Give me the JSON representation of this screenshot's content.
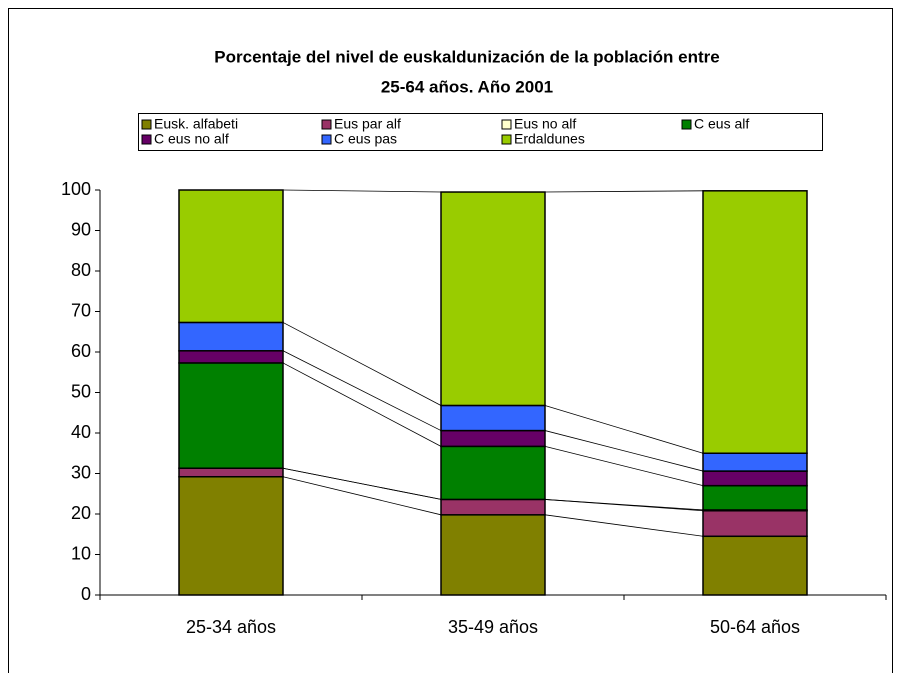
{
  "chart_data": {
    "type": "stacked_bar",
    "title_lines": [
      "Porcentaje del nivel de euskaldunización de la población entre",
      "25-64 años. Año 2001"
    ],
    "categories": [
      "25-34 años",
      "35-49 años",
      "50-64 años"
    ],
    "series": [
      {
        "name": "Eusk. alfabeti",
        "color": "#808000",
        "values": [
          29.2,
          19.8,
          14.5
        ]
      },
      {
        "name": "Eus par alf",
        "color": "#993366",
        "values": [
          2.1,
          3.8,
          6.3
        ]
      },
      {
        "name": "Eus no alf",
        "color": "#ffffcc",
        "values": [
          0,
          0,
          0.2
        ]
      },
      {
        "name": "C eus alf",
        "color": "#008000",
        "values": [
          26,
          13.1,
          6
        ]
      },
      {
        "name": "C eus no alf",
        "color": "#660066",
        "values": [
          3,
          3.9,
          3.6
        ]
      },
      {
        "name": "C eus pas",
        "color": "#3366ff",
        "values": [
          7,
          6.2,
          4.4
        ]
      },
      {
        "name": "Erdaldunes",
        "color": "#99cc00",
        "values": [
          32.7,
          52.7,
          64.8
        ]
      }
    ],
    "ylim": [
      0,
      100
    ],
    "yticks": [
      0,
      10,
      20,
      30,
      40,
      50,
      60,
      70,
      80,
      90,
      100
    ],
    "series_lines": true
  }
}
